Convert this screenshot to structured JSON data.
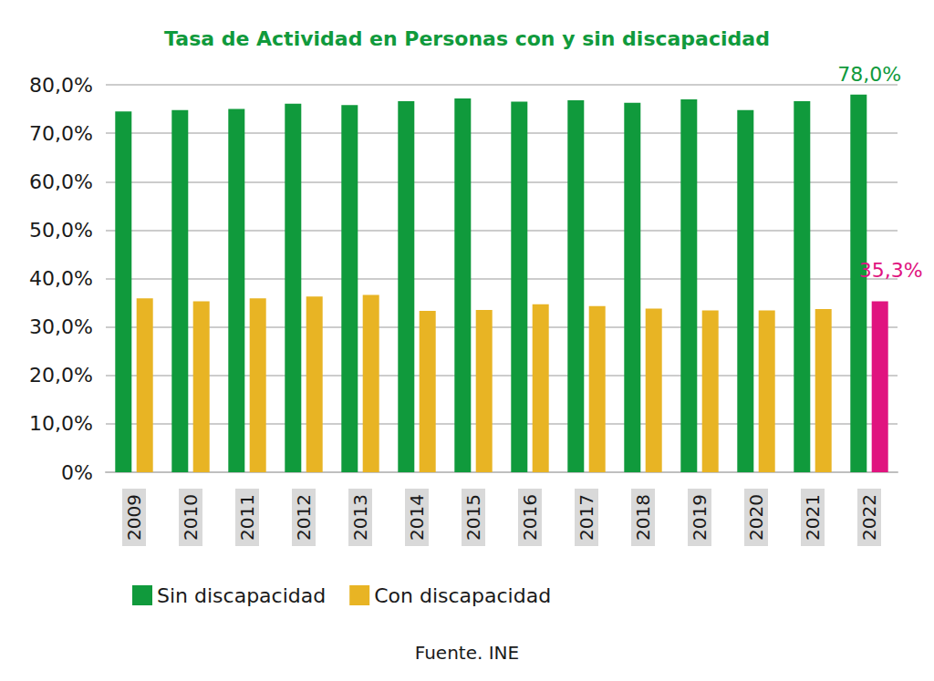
{
  "chart_data": {
    "type": "bar",
    "title": "Tasa de Actividad en Personas con y sin discapacidad",
    "source": "Fuente. INE",
    "categories": [
      "2009",
      "2010",
      "2011",
      "2012",
      "2013",
      "2014",
      "2015",
      "2016",
      "2017",
      "2018",
      "2019",
      "2020",
      "2021",
      "2022"
    ],
    "series": [
      {
        "name": "Sin discapacidad",
        "color": "#109a3c",
        "values": [
          74.5,
          74.8,
          75.0,
          76.1,
          75.8,
          76.6,
          77.2,
          76.5,
          76.8,
          76.3,
          77.0,
          74.8,
          76.6,
          78.0
        ],
        "value_labels": [
          null,
          null,
          null,
          null,
          null,
          null,
          null,
          null,
          null,
          null,
          null,
          null,
          null,
          "78,0%"
        ]
      },
      {
        "name": "Con discapacidad",
        "color": "#e8b424",
        "colors": [
          "#e8b424",
          "#e8b424",
          "#e8b424",
          "#e8b424",
          "#e8b424",
          "#e8b424",
          "#e8b424",
          "#e8b424",
          "#e8b424",
          "#e8b424",
          "#e8b424",
          "#e8b424",
          "#e8b424",
          "#e0147f"
        ],
        "values": [
          35.9,
          35.3,
          35.9,
          36.3,
          36.6,
          33.3,
          33.5,
          34.7,
          34.3,
          33.8,
          33.4,
          33.4,
          33.7,
          35.3
        ],
        "value_labels": [
          null,
          null,
          null,
          null,
          null,
          null,
          null,
          null,
          null,
          null,
          null,
          null,
          null,
          "35,3%"
        ]
      }
    ],
    "ylim": [
      0,
      80
    ],
    "yticks": [
      {
        "value": 0,
        "label": "0%"
      },
      {
        "value": 10,
        "label": "10,0%"
      },
      {
        "value": 20,
        "label": "20,0%"
      },
      {
        "value": 30,
        "label": "30,0%"
      },
      {
        "value": 40,
        "label": "40,0%"
      },
      {
        "value": 50,
        "label": "50,0%"
      },
      {
        "value": 60,
        "label": "60,0%"
      },
      {
        "value": 70,
        "label": "70,0%"
      },
      {
        "value": 80,
        "label": "80,0%"
      }
    ],
    "grid": true,
    "legend": "bottom",
    "data_labels": true
  }
}
